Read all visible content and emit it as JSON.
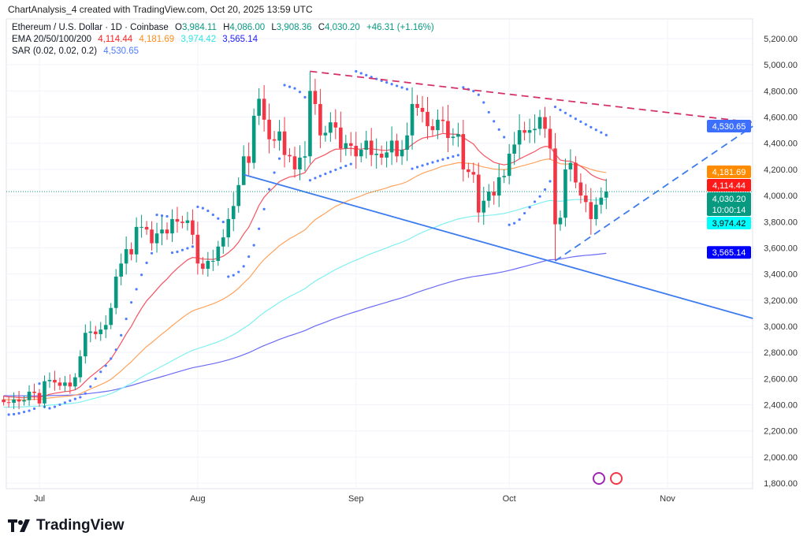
{
  "header": {
    "credit": "ChartAnalysis_4 created with TradingView.com, Oct 20, 2025 13:59 UTC",
    "symbol": "Ethereum / U.S. Dollar · 1D · Coinbase",
    "open_label": "O",
    "open": "3,984.11",
    "high_label": "H",
    "high": "4,086.00",
    "low_label": "L",
    "low": "3,908.36",
    "close_label": "C",
    "close": "4,030.20",
    "change": "+46.31 (+1.16%)",
    "ema_label": "EMA 20/50/100/200",
    "ema20": "4,114.44",
    "ema50": "4,181.69",
    "ema100": "3,974.42",
    "ema200": "3,565.14",
    "sar_label": "SAR (0.02, 0.02, 0.2)",
    "sar": "4,530.65"
  },
  "branding": {
    "logo_text": "TradingView"
  },
  "colors": {
    "up": "#089981",
    "down": "#f23645",
    "ema20": "#f7525f",
    "ema50": "#ffa35c",
    "ema100": "#7ff0f0",
    "ema200": "#6b6bf5",
    "sar": "#4f7dff",
    "trend_red": "#d4336a",
    "trend_blue": "#3d7bf0"
  },
  "chart_data": {
    "type": "candlestick",
    "title": "Ethereum / U.S. Dollar · 1D · Coinbase",
    "start_date": "Jun 24",
    "ylim": [
      1700,
      5300
    ],
    "y_ticks": [
      1800,
      2000,
      2200,
      2400,
      2600,
      2800,
      3000,
      3200,
      3400,
      3600,
      3800,
      4000,
      4200,
      4400,
      4600,
      4800,
      5000,
      5200
    ],
    "y_tick_labels": [
      "1,800.00",
      "2,000.00",
      "2,200.00",
      "2,400.00",
      "2,600.00",
      "2,800.00",
      "3,000.00",
      "3,200.00",
      "3,400.00",
      "3,600.00",
      "3,800.00",
      "4,000.00",
      "4,200.00",
      "4,400.00",
      "4,600.00",
      "4,800.00",
      "5,000.00",
      "5,200.00"
    ],
    "x_ticks": [
      {
        "label": "Jul",
        "day": 7
      },
      {
        "label": "Aug",
        "day": 38
      },
      {
        "label": "Sep",
        "day": 69
      },
      {
        "label": "Oct",
        "day": 99
      },
      {
        "label": "Nov",
        "day": 130
      }
    ],
    "closes": [
      2420,
      2415,
      2440,
      2425,
      2435,
      2500,
      2490,
      2410,
      2580,
      2590,
      2570,
      2545,
      2570,
      2540,
      2610,
      2770,
      2950,
      2960,
      2940,
      2975,
      3010,
      3140,
      3380,
      3480,
      3590,
      3550,
      3760,
      3760,
      3740,
      3635,
      3710,
      3740,
      3710,
      3820,
      3800,
      3790,
      3810,
      3700,
      3480,
      3440,
      3500,
      3500,
      3610,
      3680,
      3820,
      3920,
      4080,
      4300,
      4250,
      4610,
      4740,
      4580,
      4430,
      4420,
      4490,
      4310,
      4300,
      4200,
      4290,
      4300,
      4800,
      4700,
      4460,
      4480,
      4560,
      4520,
      4360,
      4400,
      4380,
      4300,
      4350,
      4420,
      4310,
      4320,
      4290,
      4330,
      4420,
      4300,
      4350,
      4460,
      4700,
      4670,
      4640,
      4530,
      4500,
      4580,
      4570,
      4440,
      4450,
      4470,
      4200,
      4180,
      4160,
      3870,
      3960,
      4030,
      4000,
      4140,
      4150,
      4320,
      4390,
      4500,
      4480,
      4500,
      4510,
      4600,
      4510,
      4360,
      3780,
      3830,
      4200,
      4250,
      4100,
      4000,
      3950,
      3820,
      3930,
      3984,
      4030.2
    ],
    "first_open": 2440,
    "wick_overrides": [
      {
        "day": 60,
        "high": 4950
      },
      {
        "day": 108,
        "low": 3500
      },
      {
        "day": 47,
        "low": 4160
      },
      {
        "day": 115,
        "low": 3700
      }
    ],
    "ema_seeds": {
      "ema20": 2470,
      "ema50": 2440,
      "ema100": 2380,
      "ema200": 2470
    },
    "trendlines": [
      {
        "name": "resistance",
        "style": "dashed",
        "color": "trend_red",
        "from": [
          60,
          4950
        ],
        "to": [
          146.7,
          4560
        ]
      },
      {
        "name": "support",
        "style": "solid",
        "color": "trend_blue",
        "from": [
          47,
          4160
        ],
        "to": [
          146.7,
          3060
        ]
      },
      {
        "name": "rising-support",
        "style": "dashed",
        "color": "trend_blue",
        "from": [
          108,
          3500
        ],
        "to": [
          146.7,
          4530
        ]
      }
    ],
    "price_badges": [
      {
        "value": "4,530.65",
        "price": 4530.65,
        "bg": "#3d6fff",
        "fg": "#ffffff"
      },
      {
        "value": "4,181.69",
        "price": 4181.69,
        "bg": "#ff8c00",
        "fg": "#ffffff"
      },
      {
        "value": "4,114.44",
        "price": 4114.44,
        "bg": "#ff1a1a",
        "fg": "#ffffff"
      },
      {
        "value": "4,030.20",
        "price": 4030.2,
        "bg": "#089981",
        "fg": "#ffffff",
        "sub": "10:00:14"
      },
      {
        "value": "3,974.42",
        "price": 3974.42,
        "bg": "#00ffff",
        "fg": "#000000"
      },
      {
        "value": "3,565.14",
        "price": 3565.14,
        "bg": "#0000ff",
        "fg": "#ffffff"
      }
    ],
    "last_price": 4030.2
  }
}
